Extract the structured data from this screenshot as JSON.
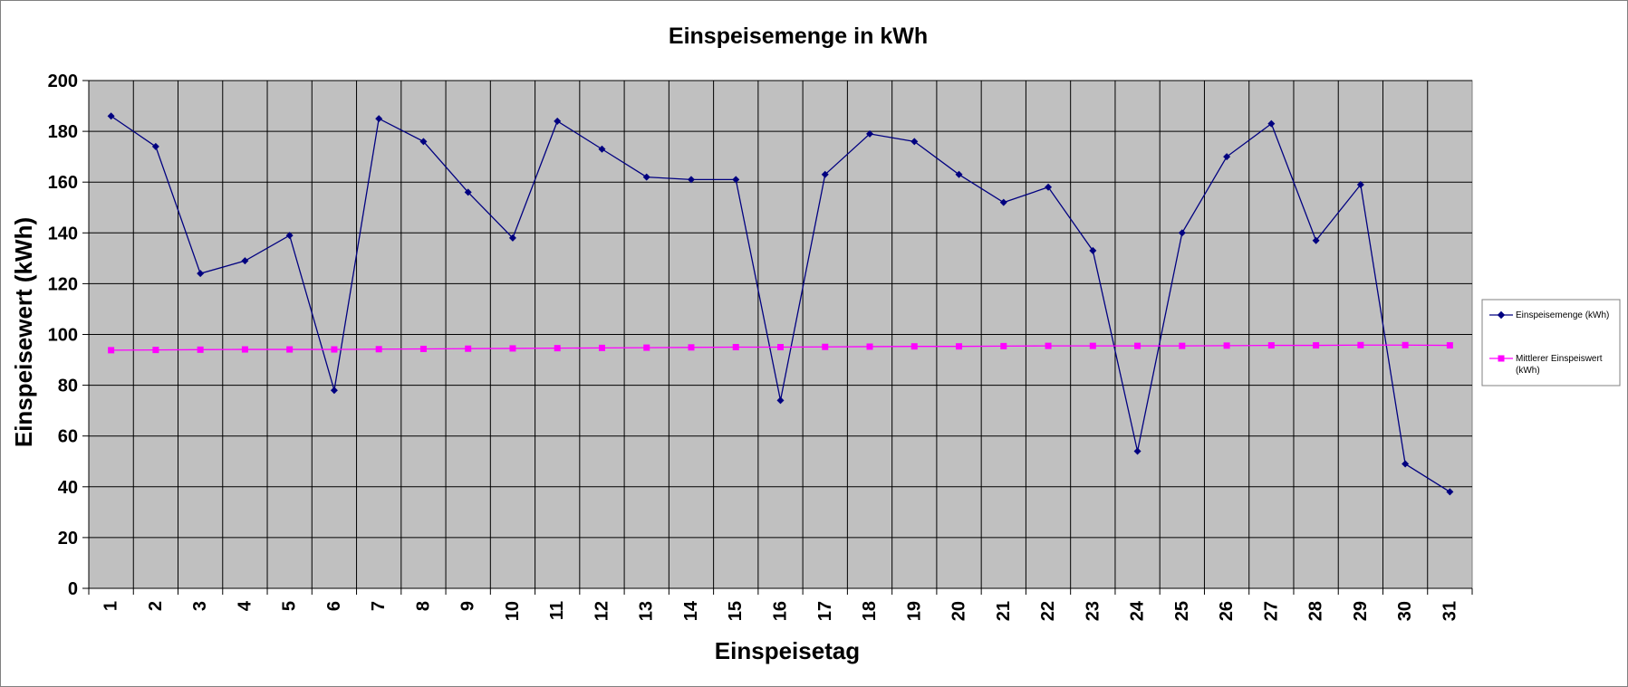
{
  "chart_data": {
    "type": "line",
    "title": "Einspeisemenge in kWh",
    "xlabel": "Einspeisetag",
    "ylabel": "Einspeisewert  (kWh)",
    "ylim": [
      0,
      200
    ],
    "yticks": [
      "0",
      "20",
      "40",
      "60",
      "80",
      "100",
      "120",
      "140",
      "160",
      "180",
      "200"
    ],
    "categories": [
      "1",
      "2",
      "3",
      "4",
      "5",
      "6",
      "7",
      "8",
      "9",
      "10",
      "11",
      "12",
      "13",
      "14",
      "15",
      "16",
      "17",
      "18",
      "19",
      "20",
      "21",
      "22",
      "23",
      "24",
      "25",
      "26",
      "27",
      "28",
      "29",
      "30",
      "31"
    ],
    "grid": true,
    "legend_position": "right",
    "series": [
      {
        "name": "Einspeisemenge (kWh)",
        "color": "#000080",
        "marker": "diamond",
        "values": [
          186,
          174,
          124,
          129,
          139,
          78,
          185,
          176,
          156,
          138,
          184,
          173,
          162,
          161,
          161,
          74,
          163,
          179,
          176,
          163,
          152,
          158,
          133,
          54,
          140,
          170,
          183,
          137,
          159,
          49,
          38
        ]
      },
      {
        "name": "Mittlerer Einspeiswert (kWh)",
        "name_lines": [
          "Mittlerer Einspeiswert",
          "(kWh)"
        ],
        "color": "#ff00ff",
        "marker": "square",
        "values": [
          93.8,
          93.9,
          94.0,
          94.1,
          94.1,
          94.1,
          94.2,
          94.3,
          94.4,
          94.5,
          94.6,
          94.7,
          94.8,
          94.9,
          95.0,
          95.0,
          95.1,
          95.2,
          95.3,
          95.3,
          95.4,
          95.5,
          95.5,
          95.5,
          95.5,
          95.6,
          95.7,
          95.7,
          95.8,
          95.8,
          95.7
        ]
      }
    ],
    "colors": {
      "plot_background": "#c0c0c0",
      "grid": "#000000",
      "frame": "#808080"
    }
  }
}
